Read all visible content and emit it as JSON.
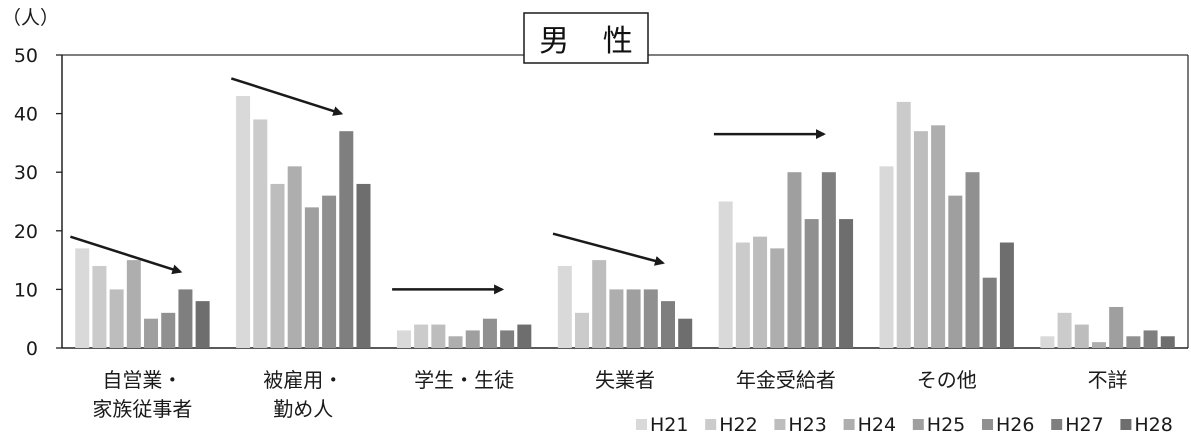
{
  "chart_data": {
    "type": "bar",
    "title": "男 性",
    "ylabel": "（人）",
    "ylim": [
      0,
      50
    ],
    "yticks": [
      0,
      10,
      20,
      30,
      40,
      50
    ],
    "grid": false,
    "legend_position": "bottom-right",
    "categories": [
      [
        "自営業・",
        "家族従事者"
      ],
      [
        "被雇用・",
        "勤め人"
      ],
      [
        "学生・生徒"
      ],
      [
        "失業者"
      ],
      [
        "年金受給者"
      ],
      [
        "その他"
      ],
      [
        "不詳"
      ]
    ],
    "series": [
      {
        "name": "H21",
        "color": "#d9d9d9",
        "values": [
          17,
          43,
          3,
          14,
          25,
          31,
          2
        ]
      },
      {
        "name": "H22",
        "color": "#cbcbcb",
        "values": [
          14,
          39,
          4,
          6,
          18,
          42,
          6
        ]
      },
      {
        "name": "H23",
        "color": "#bdbdbd",
        "values": [
          10,
          28,
          4,
          15,
          19,
          37,
          4
        ]
      },
      {
        "name": "H24",
        "color": "#aeaeae",
        "values": [
          15,
          31,
          2,
          10,
          17,
          38,
          1
        ]
      },
      {
        "name": "H25",
        "color": "#9f9f9f",
        "values": [
          5,
          24,
          3,
          10,
          30,
          26,
          7
        ]
      },
      {
        "name": "H26",
        "color": "#909090",
        "values": [
          6,
          26,
          5,
          10,
          22,
          30,
          2
        ]
      },
      {
        "name": "H27",
        "color": "#7f7f7f",
        "values": [
          10,
          37,
          3,
          8,
          30,
          12,
          3
        ]
      },
      {
        "name": "H28",
        "color": "#6e6e6e",
        "values": [
          8,
          28,
          4,
          5,
          22,
          18,
          2
        ]
      }
    ],
    "trend_arrows": [
      "decreasing",
      "decreasing",
      "flat",
      "decreasing",
      "flat"
    ]
  }
}
